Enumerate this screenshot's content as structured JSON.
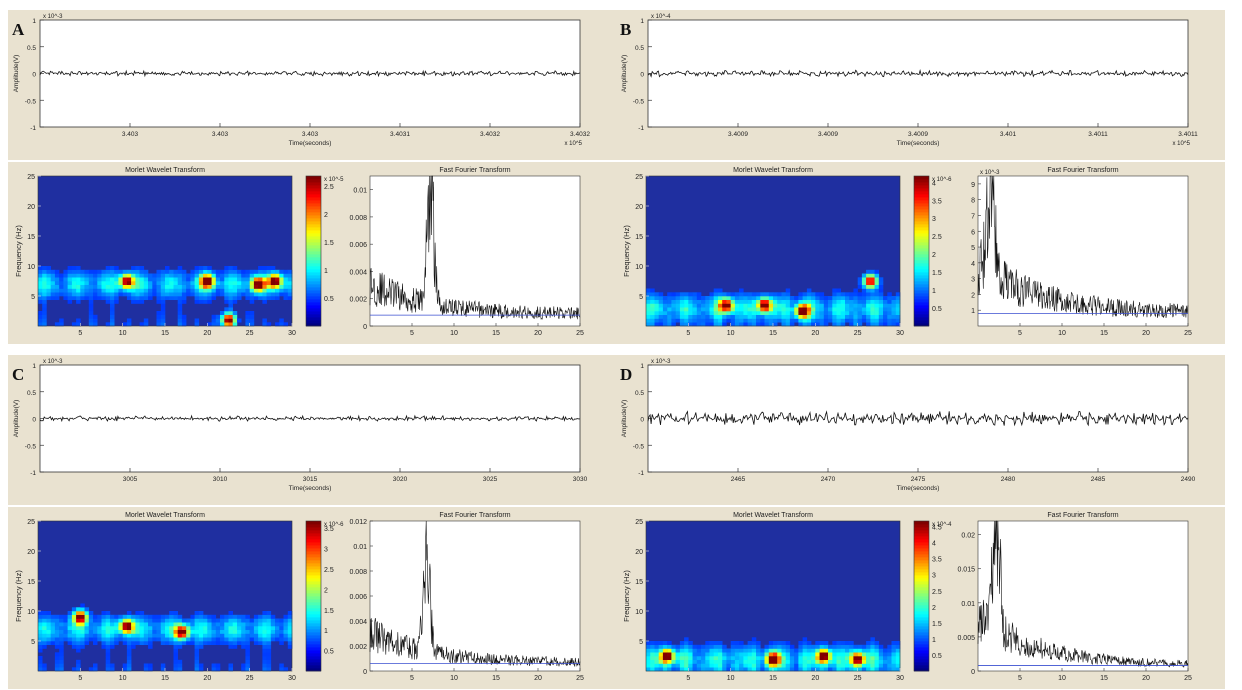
{
  "titles": {
    "wavelet": "Morlet Wavelet Transform",
    "fft": "Fast Fourier Transform"
  },
  "colors": {
    "panel": "#e9e2d0",
    "trace": "#111111",
    "fft_baseline": "#3a4fd0",
    "wavelet_background": "#1f2fa0"
  },
  "chart_data": [
    {
      "panel": "A",
      "signal": {
        "type": "line",
        "ylabel": "Amplitude(V)",
        "xlabel": "Time(seconds)",
        "ylim": [
          -1,
          1
        ],
        "y_exponent": "x 10^-3",
        "x_exponent": "x 10^5",
        "yticks": [
          "1",
          "0.5",
          "0",
          "-0.5",
          "-1"
        ],
        "xticks": [
          "3.403",
          "3.403",
          "3.403",
          "3.4031",
          "3.4032",
          "3.4032"
        ],
        "noise_amplitude": 0.05
      },
      "wavelet": {
        "type": "heatmap",
        "title": "Morlet Wavelet Transform",
        "ylabel": "Frequency (Hz)",
        "xlim": [
          0,
          30
        ],
        "ylim": [
          0,
          25
        ],
        "xticks": [
          "5",
          "10",
          "15",
          "20",
          "25",
          "30"
        ],
        "yticks": [
          "5",
          "10",
          "15",
          "20",
          "25"
        ],
        "band_hz": 7,
        "hotspots": [
          {
            "t": 10.5,
            "f": 7.5
          },
          {
            "t": 20,
            "f": 7.5
          },
          {
            "t": 26,
            "f": 7
          },
          {
            "t": 28,
            "f": 7.5
          },
          {
            "t": 22.5,
            "f": 1
          }
        ],
        "colorbar_ticks": [
          "0.5",
          "1",
          "1.5",
          "2",
          "2.5"
        ],
        "colorbar_exponent": "x 10^-5"
      },
      "fft": {
        "type": "line",
        "title": "Fast Fourier Transform",
        "xlim": [
          0,
          25
        ],
        "ylim": [
          0,
          0.011
        ],
        "xticks": [
          "5",
          "10",
          "15",
          "20",
          "25"
        ],
        "yticks": [
          "0",
          "0.002",
          "0.004",
          "0.006",
          "0.008",
          "0.01"
        ],
        "peak": {
          "x": 7.2,
          "y": 0.0105
        },
        "baseline": 0.0008
      }
    },
    {
      "panel": "B",
      "signal": {
        "type": "line",
        "ylabel": "Amplitude(V)",
        "xlabel": "Time(seconds)",
        "ylim": [
          -1,
          1
        ],
        "y_exponent": "x 10^-4",
        "x_exponent": "x 10^5",
        "yticks": [
          "1",
          "0.5",
          "0",
          "-0.5",
          "-1"
        ],
        "xticks": [
          "3.4009",
          "3.4009",
          "3.4009",
          "3.401",
          "3.4011",
          "3.4011"
        ],
        "noise_amplitude": 0.06
      },
      "wavelet": {
        "type": "heatmap",
        "title": "Morlet Wavelet Transform",
        "ylabel": "Frequency (Hz)",
        "xlim": [
          0,
          30
        ],
        "ylim": [
          0,
          25
        ],
        "xticks": [
          "5",
          "10",
          "15",
          "20",
          "25",
          "30"
        ],
        "yticks": [
          "5",
          "10",
          "15",
          "20",
          "25"
        ],
        "band_hz": 3,
        "hotspots": [
          {
            "t": 9.5,
            "f": 3.5
          },
          {
            "t": 18.5,
            "f": 2.5
          },
          {
            "t": 26.5,
            "f": 7.5
          },
          {
            "t": 14,
            "f": 3.5
          }
        ],
        "colorbar_ticks": [
          "0.5",
          "1",
          "1.5",
          "2",
          "2.5",
          "3",
          "3.5",
          "4"
        ],
        "colorbar_exponent": "x 10^-6"
      },
      "fft": {
        "type": "line",
        "title": "Fast Fourier Transform",
        "xlim": [
          0,
          25
        ],
        "ylim": [
          0,
          9.5
        ],
        "xticks": [
          "5",
          "10",
          "15",
          "20",
          "25"
        ],
        "yticks": [
          "1",
          "2",
          "3",
          "4",
          "5",
          "6",
          "7",
          "8",
          "9"
        ],
        "y_exponent": "x 10^-3",
        "peak": {
          "x": 1.5,
          "y": 9
        },
        "baseline": 0.8
      }
    },
    {
      "panel": "C",
      "signal": {
        "type": "line",
        "ylabel": "Amplitude(V)",
        "xlabel": "Time(seconds)",
        "ylim": [
          -1,
          1
        ],
        "y_exponent": "x 10^-3",
        "yticks": [
          "1",
          "0.5",
          "0",
          "-0.5",
          "-1"
        ],
        "xticks": [
          "3005",
          "3010",
          "3015",
          "3020",
          "3025",
          "3030"
        ],
        "noise_amplitude": 0.05
      },
      "wavelet": {
        "type": "heatmap",
        "title": "Morlet Wavelet Transform",
        "ylabel": "Frequency (Hz)",
        "xlim": [
          0,
          30
        ],
        "ylim": [
          0,
          25
        ],
        "xticks": [
          "5",
          "10",
          "15",
          "20",
          "25",
          "30"
        ],
        "yticks": [
          "5",
          "10",
          "15",
          "20",
          "25"
        ],
        "band_hz": 7,
        "hotspots": [
          {
            "t": 10.5,
            "f": 7.5
          },
          {
            "t": 5,
            "f": 9
          },
          {
            "t": 17,
            "f": 6.5
          }
        ],
        "colorbar_ticks": [
          "0.5",
          "1",
          "1.5",
          "2",
          "2.5",
          "3",
          "3.5"
        ],
        "colorbar_exponent": "x 10^-6"
      },
      "fft": {
        "type": "line",
        "title": "Fast Fourier Transform",
        "xlim": [
          0,
          25
        ],
        "ylim": [
          0,
          0.012
        ],
        "xticks": [
          "5",
          "10",
          "15",
          "20",
          "25"
        ],
        "yticks": [
          "0",
          "0.002",
          "0.004",
          "0.006",
          "0.008",
          "0.01",
          "0.012"
        ],
        "peak": {
          "x": 6.7,
          "y": 0.0115
        },
        "baseline": 0.0006
      }
    },
    {
      "panel": "D",
      "signal": {
        "type": "line",
        "ylabel": "Amplitude(V)",
        "xlabel": "Time(seconds)",
        "ylim": [
          -1,
          1
        ],
        "y_exponent": "x 10^-3",
        "yticks": [
          "1",
          "0.5",
          "0",
          "-0.5",
          "-1"
        ],
        "xticks": [
          "2465",
          "2470",
          "2475",
          "2480",
          "2485",
          "2490"
        ],
        "noise_amplitude": 0.14
      },
      "wavelet": {
        "type": "heatmap",
        "title": "Morlet Wavelet Transform",
        "ylabel": "Frequency (Hz)",
        "xlim": [
          0,
          30
        ],
        "ylim": [
          0,
          25
        ],
        "xticks": [
          "5",
          "10",
          "15",
          "20",
          "25",
          "30"
        ],
        "yticks": [
          "5",
          "10",
          "15",
          "20",
          "25"
        ],
        "band_hz": 2,
        "hotspots": [
          {
            "t": 25,
            "f": 2
          },
          {
            "t": 2.5,
            "f": 2.5
          },
          {
            "t": 15,
            "f": 2
          },
          {
            "t": 21,
            "f": 2.5
          }
        ],
        "colorbar_ticks": [
          "0.5",
          "1",
          "1.5",
          "2",
          "2.5",
          "3",
          "3.5",
          "4",
          "4.5"
        ],
        "colorbar_exponent": "x 10^-4"
      },
      "fft": {
        "type": "line",
        "title": "Fast Fourier Transform",
        "xlim": [
          0,
          25
        ],
        "ylim": [
          0,
          0.022
        ],
        "xticks": [
          "5",
          "10",
          "15",
          "20",
          "25"
        ],
        "yticks": [
          "0",
          "0.005",
          "0.01",
          "0.015",
          "0.02"
        ],
        "peak": {
          "x": 2.2,
          "y": 0.021
        },
        "baseline": 0.0008
      }
    }
  ]
}
